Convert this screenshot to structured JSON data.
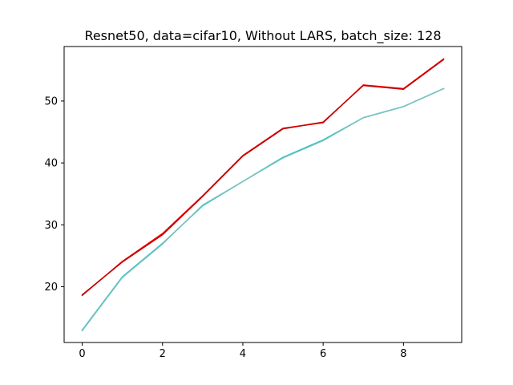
{
  "chart_data": {
    "type": "line",
    "title": "Resnet50, data=cifar10, Without LARS, batch_size: 128",
    "xlabel": "",
    "ylabel": "",
    "x": [
      0,
      1,
      2,
      3,
      4,
      5,
      6,
      7,
      8,
      9
    ],
    "series": [
      {
        "color": "#ff0000",
        "values": [
          18.6,
          24.1,
          28.6,
          34.7,
          41.2,
          45.6,
          46.5,
          52.6,
          52.0,
          56.8
        ]
      },
      {
        "color": "#bf0000",
        "values": [
          18.7,
          24.0,
          28.4,
          34.6,
          41.1,
          45.5,
          46.6,
          52.5,
          51.9,
          56.7
        ]
      },
      {
        "color": "#00bfbf",
        "values": [
          13.0,
          21.6,
          27.0,
          33.1,
          37.0,
          40.9,
          43.7,
          47.3,
          49.1,
          52.0
        ]
      },
      {
        "color": "#7fbfbf",
        "values": [
          12.9,
          21.5,
          26.9,
          33.2,
          37.0,
          40.8,
          43.6,
          47.3,
          49.1,
          52.0
        ]
      }
    ],
    "xticks": [
      0,
      2,
      4,
      6,
      8
    ],
    "yticks": [
      20,
      30,
      40,
      50
    ],
    "xlim": [
      -0.45,
      9.45
    ],
    "ylim": [
      11.0,
      58.8
    ],
    "grid": false,
    "legend": "none"
  }
}
